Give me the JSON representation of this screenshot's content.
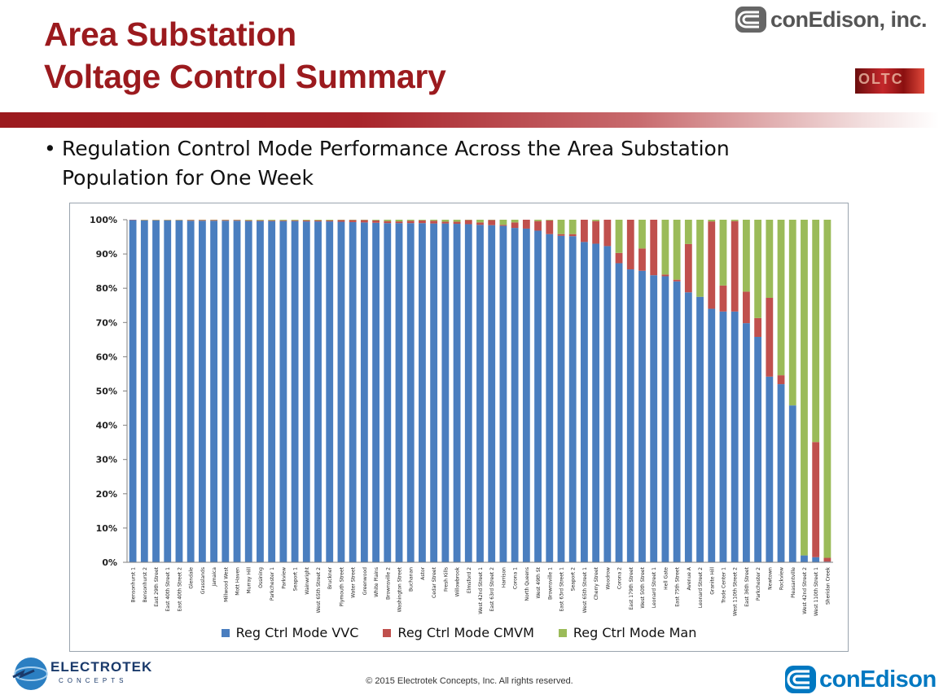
{
  "header": {
    "title_line1": "Area Substation",
    "title_line2": "Voltage Control Summary",
    "brand_top": "conEdison, inc.",
    "deco_text": "OLTC"
  },
  "bullet": {
    "text": "Regulation Control Mode Performance Across the Area Substation Population for One Week"
  },
  "footer": {
    "copyright": "© 2015 Electrotek Concepts,  Inc. All rights reserved.",
    "left_logo_text": "ELECTROTEK",
    "left_logo_sub": "CONCEPTS",
    "right_logo_text": "conEdison"
  },
  "colors": {
    "title_red": "#9b1a1e",
    "vvc": "#4a7ebf",
    "cmvm": "#c0504d",
    "man": "#9bbb59",
    "conedison_blue": "#0078c1"
  },
  "chart_data": {
    "type": "bar",
    "stacked": true,
    "title": "",
    "xlabel": "",
    "ylabel": "",
    "ylim": [
      0,
      100
    ],
    "yticks": [
      "0%",
      "10%",
      "20%",
      "30%",
      "40%",
      "50%",
      "60%",
      "70%",
      "80%",
      "90%",
      "100%"
    ],
    "grid": false,
    "legend_position": "bottom",
    "categories": [
      "Bensonhurst 1",
      "Bensonhurst 2",
      "East 29th Street",
      "East 40th Street 1",
      "East 40th Street 2",
      "Glendale",
      "Grasslands",
      "Jamaica",
      "Millwood West",
      "Mott Haven",
      "Murray Hill",
      "Ossining",
      "Parkchester 1",
      "Parkview",
      "Seaport 1",
      "Wainwright",
      "West 65th Street 2",
      "Bruckner",
      "Plymouth Street",
      "Water Street",
      "Greenwood",
      "White Plains",
      "Brownsville 2",
      "Washington Street",
      "Buchanan",
      "Astor",
      "Cedar Street",
      "Fresh Kills",
      "Willowbrook",
      "Elmsford 2",
      "West 42nd Street 1",
      "East 63rd Street 2",
      "Harrison",
      "Corona 1",
      "North Queens",
      "West 49th St",
      "Brownsville 1",
      "East 63rd Street 1",
      "Seaport 2",
      "West 65th Street 1",
      "Cherry Street",
      "Woodrow",
      "Corona 2",
      "East 179th Street",
      "West 50th Street",
      "Leonard Street 1",
      "Hell Gate",
      "East 75th Street",
      "Avenue A",
      "Leonard Street 2",
      "Granite Hill",
      "Trade Center 1",
      "West 110th Street 2",
      "East 36th Street",
      "Parkchester 2",
      "Newtown",
      "Rockview",
      "Pleasantville",
      "West 42nd Street 2",
      "West 110th Street 1",
      "Sheridan Creek"
    ],
    "series": [
      {
        "name": "Reg Ctrl Mode VVC",
        "values": [
          99.9,
          99.8,
          99.8,
          99.8,
          99.8,
          99.7,
          99.7,
          99.7,
          99.7,
          99.7,
          99.6,
          99.6,
          99.6,
          99.6,
          99.6,
          99.5,
          99.5,
          99.5,
          99.4,
          99.3,
          99.2,
          99.1,
          99.0,
          99.0,
          99.0,
          99.0,
          98.9,
          98.9,
          98.8,
          98.7,
          98.5,
          98.4,
          98.2,
          97.6,
          97.4,
          96.8,
          95.8,
          95.3,
          95.2,
          93.5,
          93.0,
          92.3,
          87.3,
          85.5,
          85.1,
          83.8,
          83.5,
          82.0,
          78.8,
          77.5,
          74.0,
          73.2,
          73.2,
          69.8,
          65.8,
          54.2,
          52.0,
          45.8,
          2.0,
          1.5,
          0.2
        ]
      },
      {
        "name": "Reg Ctrl Mode CMVM",
        "values": [
          0.1,
          0.1,
          0.1,
          0.1,
          0.1,
          0.2,
          0.2,
          0.2,
          0.2,
          0.2,
          0.2,
          0.2,
          0.2,
          0.2,
          0.2,
          0.3,
          0.3,
          0.3,
          0.5,
          0.6,
          0.7,
          0.7,
          0.6,
          0.5,
          0.7,
          0.8,
          0.8,
          0.5,
          0.6,
          1.2,
          0.7,
          1.5,
          0.3,
          1.6,
          2.6,
          2.8,
          4.0,
          0.5,
          0.6,
          6.5,
          6.6,
          7.7,
          3.0,
          14.5,
          6.5,
          16.2,
          0.5,
          0.5,
          14.1,
          0,
          25.5,
          7.6,
          26.4,
          9.2,
          5.5,
          23.0,
          2.6,
          0,
          0,
          33.6,
          1.1
        ]
      },
      {
        "name": "Reg Ctrl Mode Man",
        "values": [
          0,
          0.1,
          0.1,
          0.1,
          0.1,
          0.1,
          0.1,
          0.1,
          0.1,
          0.1,
          0.2,
          0.2,
          0.2,
          0.2,
          0.2,
          0.2,
          0.2,
          0.2,
          0.1,
          0.1,
          0.1,
          0.2,
          0.4,
          0.5,
          0.3,
          0.2,
          0.3,
          0.6,
          0.6,
          0.1,
          0.8,
          0.1,
          1.5,
          0.8,
          0,
          0.4,
          0.2,
          4.2,
          4.2,
          0,
          0.4,
          0,
          9.7,
          0,
          8.4,
          0,
          16.0,
          17.5,
          7.1,
          22.5,
          0.5,
          19.2,
          0.4,
          21.0,
          28.7,
          22.8,
          45.4,
          54.2,
          98.0,
          64.9,
          98.7
        ]
      }
    ]
  }
}
